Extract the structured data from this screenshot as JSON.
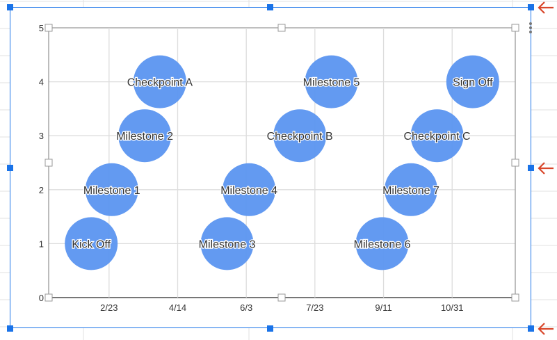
{
  "chart_data": {
    "type": "bubble",
    "title": "",
    "xlabel": "",
    "ylabel": "",
    "x_ticks": [
      "2/23",
      "4/14",
      "6/3",
      "7/23",
      "9/11",
      "10/31"
    ],
    "y_ticks": [
      0,
      1,
      2,
      3,
      4,
      5
    ],
    "xlim": [
      "1/10",
      "12/16"
    ],
    "ylim": [
      0,
      5
    ],
    "grid": true,
    "bubble_color": "#5b95f0",
    "points": [
      {
        "label": "Kick Off",
        "x": "2/10",
        "y": 1
      },
      {
        "label": "Milestone 1",
        "x": "2/25",
        "y": 2
      },
      {
        "label": "Milestone 2",
        "x": "3/21",
        "y": 3
      },
      {
        "label": "Checkpoint A",
        "x": "4/1",
        "y": 4
      },
      {
        "label": "Milestone 3",
        "x": "5/20",
        "y": 1
      },
      {
        "label": "Milestone 4",
        "x": "6/5",
        "y": 2
      },
      {
        "label": "Checkpoint B",
        "x": "7/12",
        "y": 3
      },
      {
        "label": "Milestone 5",
        "x": "8/4",
        "y": 4
      },
      {
        "label": "Milestone 6",
        "x": "9/10",
        "y": 1
      },
      {
        "label": "Milestone 7",
        "x": "10/1",
        "y": 2
      },
      {
        "label": "Checkpoint C",
        "x": "10/20",
        "y": 3
      },
      {
        "label": "Sign Off",
        "x": "11/15",
        "y": 4
      }
    ]
  },
  "ui": {
    "selection_color": "#1a73e8",
    "annotation_arrow_color": "#d9472b"
  }
}
